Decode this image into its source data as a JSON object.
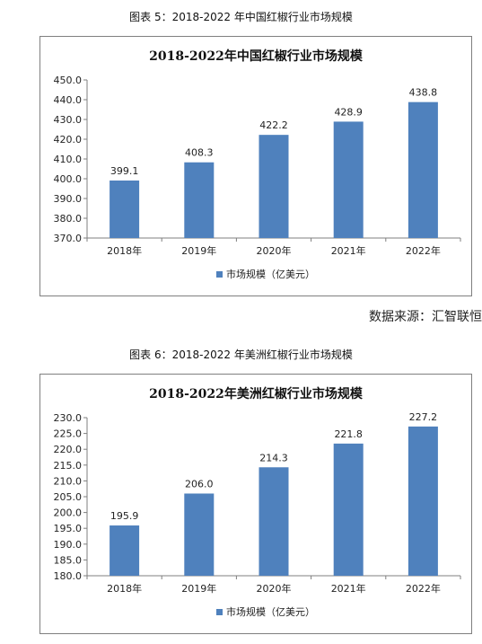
{
  "captions": [
    "图表 5：2018-2022 年中国红椒行业市场规模",
    "图表 6：2018-2022 年美洲红椒行业市场规模"
  ],
  "source_text": "数据来源：汇智联恒",
  "colors": {
    "bar": "#4f81bd",
    "axis": "#7f7f7f",
    "border": "#7f7f7f"
  },
  "chart_data": [
    {
      "type": "bar",
      "title": "2018-2022年中国红椒行业市场规模",
      "categories": [
        "2018年",
        "2019年",
        "2020年",
        "2021年",
        "2022年"
      ],
      "series": [
        {
          "name": "市场规模（亿美元）",
          "values": [
            399.1,
            408.3,
            422.2,
            428.9,
            438.8
          ]
        }
      ],
      "data_labels": [
        "399.1",
        "408.3",
        "422.2",
        "428.9",
        "438.8"
      ],
      "ylim": [
        370,
        450
      ],
      "y_ticks": [
        "370.0",
        "380.0",
        "390.0",
        "400.0",
        "410.0",
        "420.0",
        "430.0",
        "440.0",
        "450.0"
      ],
      "grid": false,
      "legend": "bottom"
    },
    {
      "type": "bar",
      "title": "2018-2022年美洲红椒行业市场规模",
      "categories": [
        "2018年",
        "2019年",
        "2020年",
        "2021年",
        "2022年"
      ],
      "series": [
        {
          "name": "市场规模（亿美元）",
          "values": [
            195.9,
            206.0,
            214.3,
            221.8,
            227.2
          ]
        }
      ],
      "data_labels": [
        "195.9",
        "206.0",
        "214.3",
        "221.8",
        "227.2"
      ],
      "ylim": [
        180,
        230
      ],
      "y_ticks": [
        "180.0",
        "185.0",
        "190.0",
        "195.0",
        "200.0",
        "205.0",
        "210.0",
        "215.0",
        "220.0",
        "225.0",
        "230.0"
      ],
      "grid": false,
      "legend": "bottom"
    }
  ]
}
